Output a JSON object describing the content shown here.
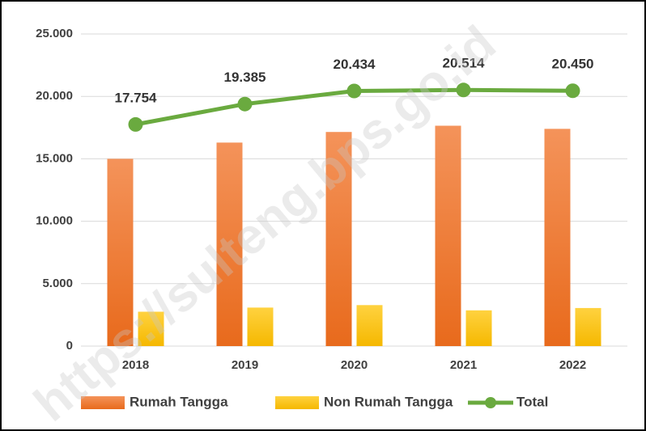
{
  "chart_data": {
    "type": "bar",
    "watermark": "https://sulteng.bps.go.id",
    "categories": [
      "2018",
      "2019",
      "2020",
      "2021",
      "2022"
    ],
    "series": [
      {
        "name": "Rumah Tangga",
        "type": "bar",
        "color": "#ef7a2d",
        "values": [
          15000,
          16300,
          17150,
          17650,
          17400
        ]
      },
      {
        "name": "Non Rumah Tangga",
        "type": "bar",
        "color": "#ffc000",
        "values": [
          2754,
          3085,
          3284,
          2864,
          3050
        ]
      },
      {
        "name": "Total",
        "type": "line",
        "color": "#6aaa3f",
        "values": [
          17754,
          19385,
          20434,
          20514,
          20450
        ],
        "value_labels": [
          "17.754",
          "19.385",
          "20.434",
          "20.514",
          "20.450"
        ]
      }
    ],
    "ylim": [
      0,
      25000
    ],
    "yticks": [
      0,
      {
        "value": 5000,
        "label": "5.000"
      },
      {
        "value": 10000,
        "label": "10.000"
      },
      {
        "value": 15000,
        "label": "15.000"
      },
      {
        "value": 20000,
        "label": "20.000"
      },
      {
        "value": 25000,
        "label": "25.000"
      }
    ],
    "grid": true,
    "legend": "bottom"
  }
}
